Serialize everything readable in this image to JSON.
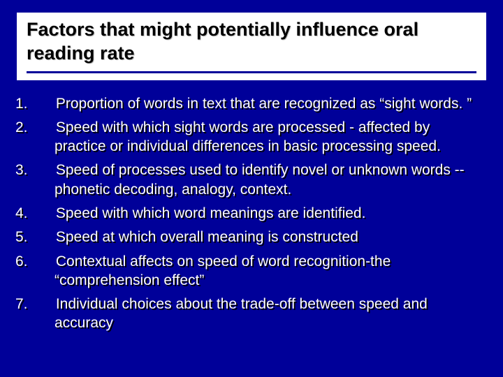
{
  "background_color": "#000099",
  "title_block_bg": "#ffffff",
  "title_color": "#000000",
  "body_text_color": "#ffffff",
  "text_shadow_color": "#000000",
  "title_fontsize": 27,
  "body_fontsize": 21,
  "title": "Factors that might potentially influence oral reading rate",
  "items": [
    {
      "num": "1.",
      "text": "Proportion of words in text that are recognized as “sight words. ”"
    },
    {
      "num": "2.",
      "text": "Speed with which sight words are processed - affected by practice or individual differences in basic processing speed."
    },
    {
      "num": "3.",
      "text": "Speed of processes used to identify novel or unknown words -- phonetic decoding, analogy, context."
    },
    {
      "num": "4.",
      "text": "Speed with which word meanings are identified."
    },
    {
      "num": "5.",
      "text": "Speed at which overall meaning is constructed"
    },
    {
      "num": "6.",
      "text": "Contextual affects on speed of word recognition-the “comprehension effect”"
    },
    {
      "num": "7.",
      "text": "Individual choices about the trade-off between speed and accuracy"
    }
  ]
}
